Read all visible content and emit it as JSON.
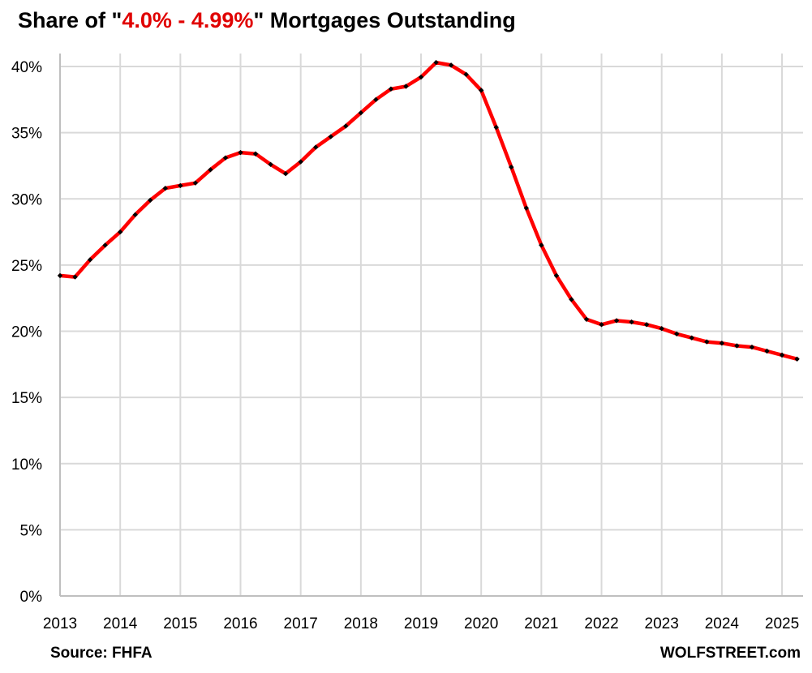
{
  "chart_data": {
    "type": "line",
    "title": {
      "prefix": "Share of \"",
      "highlight": "4.0% - 4.99%",
      "suffix": "\" Mortgages Outstanding",
      "highlight_color": "#e00000"
    },
    "source": "Source: FHFA",
    "watermark": "WOLFSTREET.com",
    "xlabel": "",
    "ylabel": "",
    "x_ticks": [
      "2013",
      "2014",
      "2015",
      "2016",
      "2017",
      "2018",
      "2019",
      "2020",
      "2021",
      "2022",
      "2023",
      "2024",
      "2025"
    ],
    "y_ticks": [
      "0%",
      "5%",
      "10%",
      "15%",
      "20%",
      "25%",
      "30%",
      "35%",
      "40%"
    ],
    "ylim": [
      0,
      40
    ],
    "xlim": [
      2013.0,
      2025.35
    ],
    "grid": true,
    "line_color": "#ff0000",
    "marker_color": "#000000",
    "series": [
      {
        "x": [
          "2013-Q1",
          "2013-Q2",
          "2013-Q3",
          "2013-Q4",
          "2014-Q1",
          "2014-Q2",
          "2014-Q3",
          "2014-Q4",
          "2015-Q1",
          "2015-Q2",
          "2015-Q3",
          "2015-Q4",
          "2016-Q1",
          "2016-Q2",
          "2016-Q3",
          "2016-Q4",
          "2017-Q1",
          "2017-Q2",
          "2017-Q3",
          "2017-Q4",
          "2018-Q1",
          "2018-Q2",
          "2018-Q3",
          "2018-Q4",
          "2019-Q1",
          "2019-Q2",
          "2019-Q3",
          "2019-Q4",
          "2020-Q1",
          "2020-Q2",
          "2020-Q3",
          "2020-Q4",
          "2021-Q1",
          "2021-Q2",
          "2021-Q3",
          "2021-Q4",
          "2022-Q1",
          "2022-Q2",
          "2022-Q3",
          "2022-Q4",
          "2023-Q1",
          "2023-Q2",
          "2023-Q3",
          "2023-Q4",
          "2024-Q1",
          "2024-Q2",
          "2024-Q3",
          "2024-Q4",
          "2025-Q1",
          "2025-Q2"
        ],
        "values": [
          24.2,
          24.1,
          25.4,
          26.5,
          27.5,
          28.8,
          29.9,
          30.8,
          31.0,
          31.2,
          32.2,
          33.1,
          33.5,
          33.4,
          32.6,
          31.9,
          32.8,
          33.9,
          34.7,
          35.5,
          36.5,
          37.5,
          38.3,
          38.5,
          39.2,
          40.3,
          40.1,
          39.4,
          38.2,
          35.4,
          32.4,
          29.3,
          26.5,
          24.2,
          22.4,
          20.9,
          20.5,
          20.8,
          20.7,
          20.5,
          20.2,
          19.8,
          19.5,
          19.2,
          19.1,
          18.9,
          18.8,
          18.5,
          18.2,
          17.9
        ]
      }
    ]
  }
}
